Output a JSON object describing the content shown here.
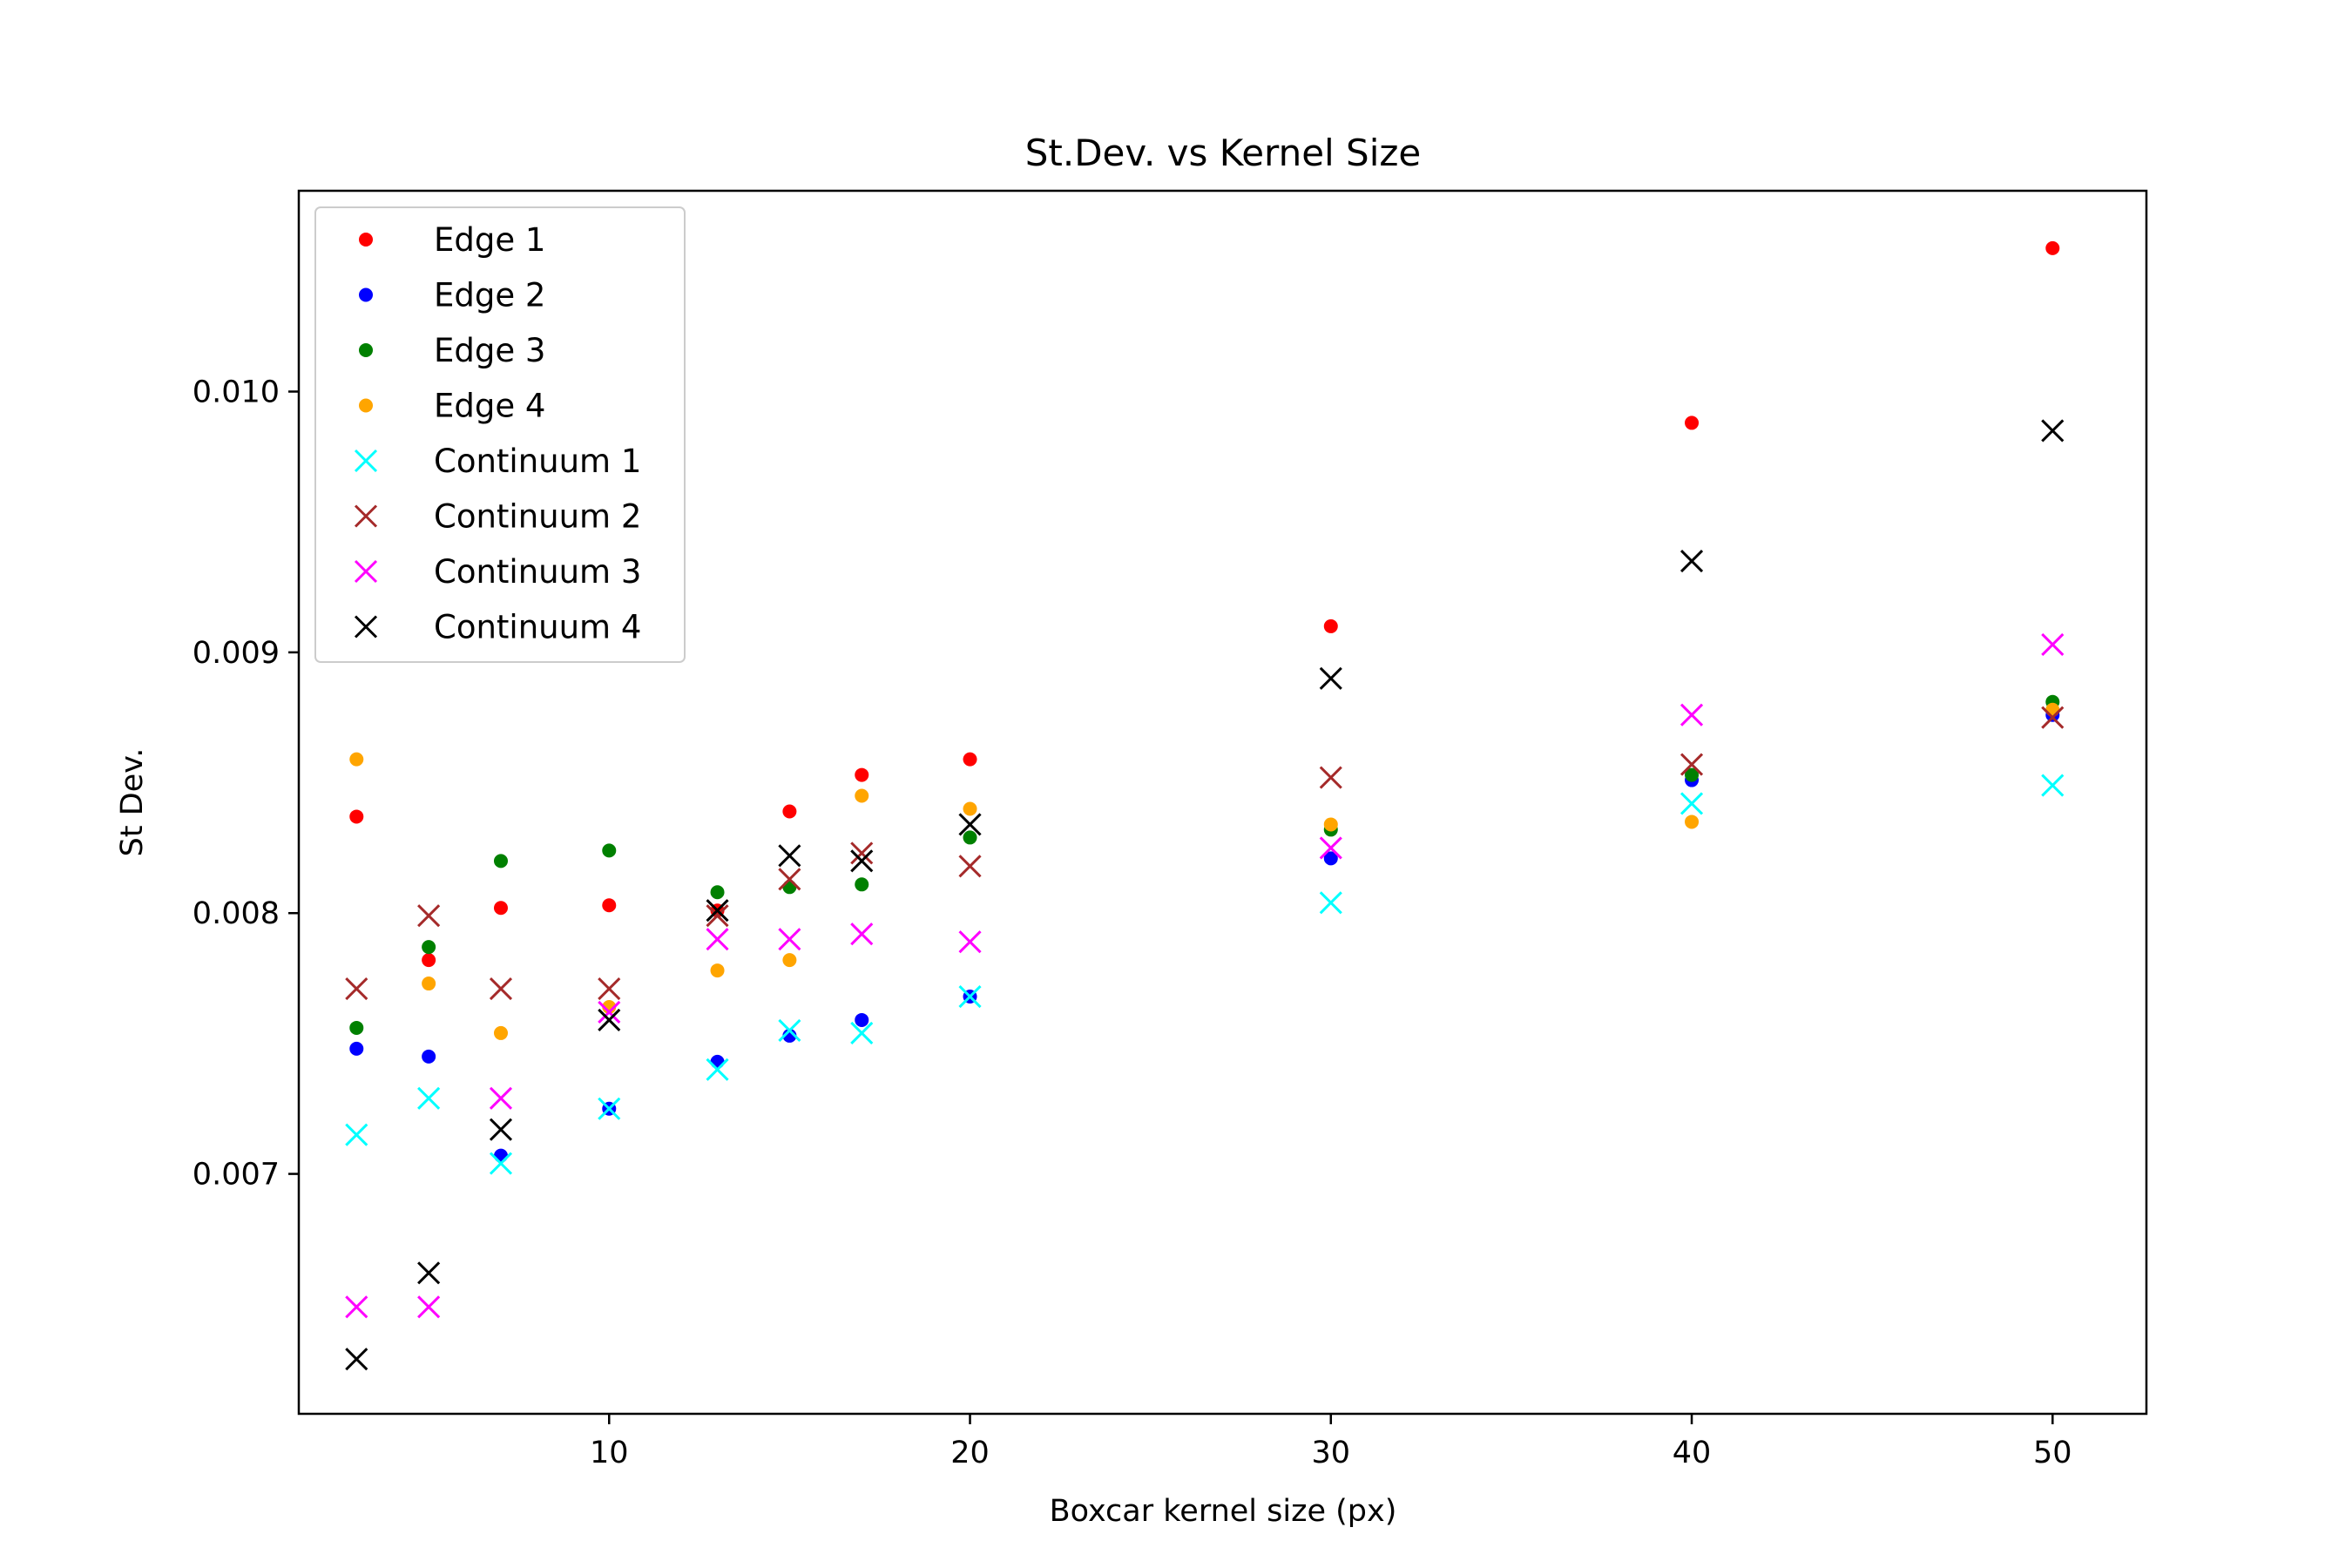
{
  "chart_data": {
    "type": "scatter",
    "title": "St.Dev. vs Kernel Size",
    "xlabel": "Boxcar kernel size (px)",
    "ylabel": "St Dev.",
    "xlim": [
      1.4,
      52.6
    ],
    "ylim": [
      0.00608,
      0.01077
    ],
    "xticks": [
      10,
      20,
      30,
      40,
      50
    ],
    "xtick_labels": [
      "10",
      "20",
      "30",
      "40",
      "50"
    ],
    "yticks": [
      0.007,
      0.008,
      0.009,
      0.01
    ],
    "ytick_labels": [
      "0.007",
      "0.008",
      "0.009",
      "0.010"
    ],
    "grid": false,
    "legend_position": "top-left",
    "x": [
      3,
      5,
      7,
      10,
      13,
      15,
      17,
      20,
      30,
      40,
      50
    ],
    "series": [
      {
        "name": "Edge 1",
        "marker": "dot",
        "color": "#ff0000",
        "values": [
          0.00837,
          0.00782,
          0.00802,
          0.00803,
          0.00801,
          0.00839,
          0.00853,
          0.00859,
          0.0091,
          0.00988,
          0.01055
        ]
      },
      {
        "name": "Edge 2",
        "marker": "dot",
        "color": "#0000ff",
        "values": [
          0.00748,
          0.00745,
          0.00707,
          0.00725,
          0.00743,
          0.00753,
          0.00759,
          0.00768,
          0.00821,
          0.00851,
          0.00876
        ]
      },
      {
        "name": "Edge 3",
        "marker": "dot",
        "color": "#008000",
        "values": [
          0.00756,
          0.00787,
          0.0082,
          0.00824,
          0.00808,
          0.0081,
          0.00811,
          0.00829,
          0.00832,
          0.00853,
          0.00881
        ]
      },
      {
        "name": "Edge 4",
        "marker": "dot",
        "color": "#ffa500",
        "values": [
          0.00859,
          0.00773,
          0.00754,
          0.00764,
          0.00778,
          0.00782,
          0.00845,
          0.0084,
          0.00834,
          0.00835,
          0.00878
        ]
      },
      {
        "name": "Continuum 1",
        "marker": "x",
        "color": "#00ffff",
        "values": [
          0.00715,
          0.00729,
          0.00704,
          0.00725,
          0.0074,
          0.00755,
          0.00754,
          0.00768,
          0.00804,
          0.00842,
          0.00849
        ]
      },
      {
        "name": "Continuum 2",
        "marker": "x",
        "color": "#a52a2a",
        "values": [
          0.00771,
          0.00799,
          0.00771,
          0.00771,
          0.00799,
          0.00813,
          0.00823,
          0.00818,
          0.00852,
          0.00857,
          0.00875
        ]
      },
      {
        "name": "Continuum 3",
        "marker": "x",
        "color": "#ff00ff",
        "values": [
          0.00649,
          0.00649,
          0.00729,
          0.00762,
          0.0079,
          0.0079,
          0.00792,
          0.00789,
          0.00825,
          0.00876,
          0.00903
        ]
      },
      {
        "name": "Continuum 4",
        "marker": "x",
        "color": "#000000",
        "values": [
          0.00629,
          0.00662,
          0.00717,
          0.00759,
          0.00801,
          0.00822,
          0.0082,
          0.00834,
          0.0089,
          0.00935,
          0.00985
        ]
      }
    ]
  }
}
